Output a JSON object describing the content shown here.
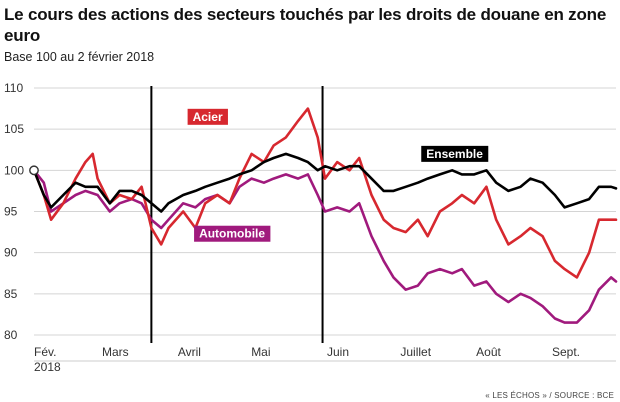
{
  "header": {
    "title": "Le cours des actions des secteurs touchés par les droits de douane en zone euro",
    "subtitle": "Base 100 au 2 février 2018"
  },
  "footer": {
    "source": "« LES ÉCHOS » / SOURCE : BCE"
  },
  "chart_data": {
    "type": "line",
    "title": "Le cours des actions des secteurs touchés par les droits de douane en zone euro",
    "subtitle": "Base 100 au 2 février 2018",
    "xlabel": "",
    "ylabel": "",
    "ylim": [
      80,
      110
    ],
    "xlim": [
      "2018-02-02",
      "2018-09-28"
    ],
    "x_tick_labels": [
      {
        "date": "2018-02-02",
        "label": "Fév.",
        "label2": "2018"
      },
      {
        "date": "2018-03-01",
        "label": "Mars"
      },
      {
        "date": "2018-04-01",
        "label": "Avril"
      },
      {
        "date": "2018-05-01",
        "label": "Mai"
      },
      {
        "date": "2018-06-01",
        "label": "Juin"
      },
      {
        "date": "2018-07-01",
        "label": "Juillet"
      },
      {
        "date": "2018-08-01",
        "label": "Août"
      },
      {
        "date": "2018-09-01",
        "label": "Sept."
      }
    ],
    "y_ticks": [
      80,
      85,
      90,
      95,
      100,
      105,
      110
    ],
    "grid": "horizontal",
    "event_lines": [
      "2018-03-22",
      "2018-05-31"
    ],
    "base_marker": {
      "date": "2018-02-02",
      "value": 100
    },
    "series": [
      {
        "name": "Ensemble",
        "color": "#000000",
        "label_bg": "#000000",
        "points": [
          [
            "2018-02-02",
            100
          ],
          [
            "2018-02-06",
            97
          ],
          [
            "2018-02-09",
            95.5
          ],
          [
            "2018-02-14",
            97
          ],
          [
            "2018-02-19",
            98.5
          ],
          [
            "2018-02-23",
            98
          ],
          [
            "2018-02-28",
            98
          ],
          [
            "2018-03-05",
            96
          ],
          [
            "2018-03-09",
            97.5
          ],
          [
            "2018-03-14",
            97.5
          ],
          [
            "2018-03-18",
            97
          ],
          [
            "2018-03-22",
            96
          ],
          [
            "2018-03-26",
            95
          ],
          [
            "2018-03-29",
            96
          ],
          [
            "2018-04-04",
            97
          ],
          [
            "2018-04-09",
            97.5
          ],
          [
            "2018-04-13",
            98
          ],
          [
            "2018-04-18",
            98.5
          ],
          [
            "2018-04-23",
            99
          ],
          [
            "2018-04-27",
            99.5
          ],
          [
            "2018-05-02",
            100
          ],
          [
            "2018-05-07",
            101
          ],
          [
            "2018-05-11",
            101.5
          ],
          [
            "2018-05-16",
            102
          ],
          [
            "2018-05-21",
            101.5
          ],
          [
            "2018-05-25",
            101
          ],
          [
            "2018-05-29",
            100
          ],
          [
            "2018-06-01",
            100.5
          ],
          [
            "2018-06-06",
            100
          ],
          [
            "2018-06-11",
            100.5
          ],
          [
            "2018-06-15",
            100.5
          ],
          [
            "2018-06-20",
            99
          ],
          [
            "2018-06-25",
            97.5
          ],
          [
            "2018-06-29",
            97.5
          ],
          [
            "2018-07-04",
            98
          ],
          [
            "2018-07-09",
            98.5
          ],
          [
            "2018-07-13",
            99
          ],
          [
            "2018-07-18",
            99.5
          ],
          [
            "2018-07-23",
            100
          ],
          [
            "2018-07-27",
            99.5
          ],
          [
            "2018-08-01",
            99.5
          ],
          [
            "2018-08-06",
            100
          ],
          [
            "2018-08-10",
            98.5
          ],
          [
            "2018-08-15",
            97.5
          ],
          [
            "2018-08-20",
            98
          ],
          [
            "2018-08-24",
            99
          ],
          [
            "2018-08-29",
            98.5
          ],
          [
            "2018-09-03",
            97
          ],
          [
            "2018-09-07",
            95.5
          ],
          [
            "2018-09-12",
            96
          ],
          [
            "2018-09-17",
            96.5
          ],
          [
            "2018-09-21",
            98
          ],
          [
            "2018-09-26",
            98
          ],
          [
            "2018-09-28",
            97.8
          ]
        ]
      },
      {
        "name": "Acier",
        "color": "#d7282f",
        "label_bg": "#d7282f",
        "points": [
          [
            "2018-02-02",
            100
          ],
          [
            "2018-02-06",
            97
          ],
          [
            "2018-02-09",
            94
          ],
          [
            "2018-02-14",
            96
          ],
          [
            "2018-02-19",
            99
          ],
          [
            "2018-02-23",
            101
          ],
          [
            "2018-02-26",
            102
          ],
          [
            "2018-02-28",
            99
          ],
          [
            "2018-03-05",
            96
          ],
          [
            "2018-03-09",
            97
          ],
          [
            "2018-03-14",
            96.5
          ],
          [
            "2018-03-18",
            98
          ],
          [
            "2018-03-22",
            93
          ],
          [
            "2018-03-26",
            91
          ],
          [
            "2018-03-29",
            93
          ],
          [
            "2018-04-04",
            95
          ],
          [
            "2018-04-09",
            93
          ],
          [
            "2018-04-13",
            96
          ],
          [
            "2018-04-18",
            97
          ],
          [
            "2018-04-23",
            96
          ],
          [
            "2018-04-27",
            99
          ],
          [
            "2018-05-02",
            102
          ],
          [
            "2018-05-07",
            101
          ],
          [
            "2018-05-11",
            103
          ],
          [
            "2018-05-16",
            104
          ],
          [
            "2018-05-21",
            106
          ],
          [
            "2018-05-25",
            107.5
          ],
          [
            "2018-05-29",
            104
          ],
          [
            "2018-06-01",
            99
          ],
          [
            "2018-06-06",
            101
          ],
          [
            "2018-06-11",
            100
          ],
          [
            "2018-06-15",
            101.5
          ],
          [
            "2018-06-20",
            97
          ],
          [
            "2018-06-25",
            94
          ],
          [
            "2018-06-29",
            93
          ],
          [
            "2018-07-04",
            92.5
          ],
          [
            "2018-07-09",
            94
          ],
          [
            "2018-07-13",
            92
          ],
          [
            "2018-07-18",
            95
          ],
          [
            "2018-07-23",
            96
          ],
          [
            "2018-07-27",
            97
          ],
          [
            "2018-08-01",
            96
          ],
          [
            "2018-08-06",
            98
          ],
          [
            "2018-08-10",
            94
          ],
          [
            "2018-08-15",
            91
          ],
          [
            "2018-08-20",
            92
          ],
          [
            "2018-08-24",
            93
          ],
          [
            "2018-08-29",
            92
          ],
          [
            "2018-09-03",
            89
          ],
          [
            "2018-09-07",
            88
          ],
          [
            "2018-09-12",
            87
          ],
          [
            "2018-09-17",
            90
          ],
          [
            "2018-09-21",
            94
          ],
          [
            "2018-09-26",
            94
          ],
          [
            "2018-09-28",
            94
          ]
        ]
      },
      {
        "name": "Automobile",
        "color": "#a01a7d",
        "label_bg": "#a01a7d",
        "points": [
          [
            "2018-02-02",
            100
          ],
          [
            "2018-02-06",
            98.5
          ],
          [
            "2018-02-09",
            95
          ],
          [
            "2018-02-14",
            96
          ],
          [
            "2018-02-19",
            97
          ],
          [
            "2018-02-23",
            97.5
          ],
          [
            "2018-02-28",
            97
          ],
          [
            "2018-03-05",
            95
          ],
          [
            "2018-03-09",
            96
          ],
          [
            "2018-03-14",
            96.5
          ],
          [
            "2018-03-18",
            96
          ],
          [
            "2018-03-22",
            94
          ],
          [
            "2018-03-26",
            93
          ],
          [
            "2018-03-29",
            94
          ],
          [
            "2018-04-04",
            96
          ],
          [
            "2018-04-09",
            95.5
          ],
          [
            "2018-04-13",
            96.5
          ],
          [
            "2018-04-18",
            97
          ],
          [
            "2018-04-23",
            96
          ],
          [
            "2018-04-27",
            98
          ],
          [
            "2018-05-02",
            99
          ],
          [
            "2018-05-07",
            98.5
          ],
          [
            "2018-05-11",
            99
          ],
          [
            "2018-05-16",
            99.5
          ],
          [
            "2018-05-21",
            99
          ],
          [
            "2018-05-25",
            99.5
          ],
          [
            "2018-05-29",
            97
          ],
          [
            "2018-06-01",
            95
          ],
          [
            "2018-06-06",
            95.5
          ],
          [
            "2018-06-11",
            95
          ],
          [
            "2018-06-15",
            96
          ],
          [
            "2018-06-20",
            92
          ],
          [
            "2018-06-25",
            89
          ],
          [
            "2018-06-29",
            87
          ],
          [
            "2018-07-04",
            85.5
          ],
          [
            "2018-07-09",
            86
          ],
          [
            "2018-07-13",
            87.5
          ],
          [
            "2018-07-18",
            88
          ],
          [
            "2018-07-23",
            87.5
          ],
          [
            "2018-07-27",
            88
          ],
          [
            "2018-08-01",
            86
          ],
          [
            "2018-08-06",
            86.5
          ],
          [
            "2018-08-10",
            85
          ],
          [
            "2018-08-15",
            84
          ],
          [
            "2018-08-20",
            85
          ],
          [
            "2018-08-24",
            84.5
          ],
          [
            "2018-08-29",
            83.5
          ],
          [
            "2018-09-03",
            82
          ],
          [
            "2018-09-07",
            81.5
          ],
          [
            "2018-09-12",
            81.5
          ],
          [
            "2018-09-17",
            83
          ],
          [
            "2018-09-21",
            85.5
          ],
          [
            "2018-09-26",
            87
          ],
          [
            "2018-09-28",
            86.5
          ]
        ]
      }
    ],
    "series_labels": [
      {
        "series": "Acier",
        "date": "2018-04-14",
        "value": 106.5
      },
      {
        "series": "Ensemble",
        "date": "2018-07-24",
        "value": 102
      },
      {
        "series": "Automobile",
        "date": "2018-04-24",
        "value": 92.3
      }
    ]
  }
}
